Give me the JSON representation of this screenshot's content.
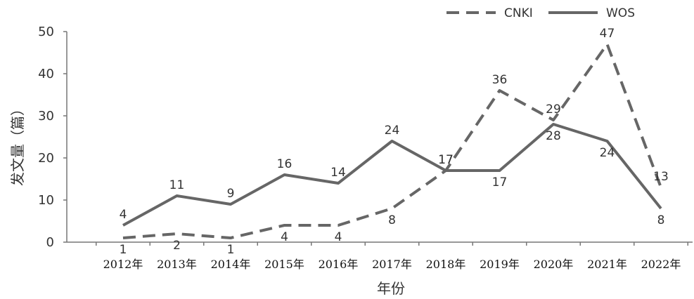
{
  "chart_data": {
    "type": "line",
    "xlabel": "年份",
    "ylabel": "发文量（篇）",
    "categories": [
      "2012年",
      "2013年",
      "2014年",
      "2015年",
      "2016年",
      "2017年",
      "2018年",
      "2019年",
      "2020年",
      "2021年",
      "2022年"
    ],
    "ylim": [
      0,
      50
    ],
    "yticks": [
      0,
      10,
      20,
      30,
      40,
      50
    ],
    "grid": false,
    "legend_position": "top-right",
    "series": [
      {
        "name": "CNKI",
        "style": "dashed",
        "color": "#666666",
        "values": [
          1,
          2,
          1,
          4,
          4,
          8,
          17,
          36,
          29,
          47,
          13
        ]
      },
      {
        "name": "WOS",
        "style": "solid",
        "color": "#666666",
        "values": [
          4,
          11,
          9,
          16,
          14,
          24,
          17,
          17,
          28,
          24,
          8
        ]
      }
    ]
  }
}
